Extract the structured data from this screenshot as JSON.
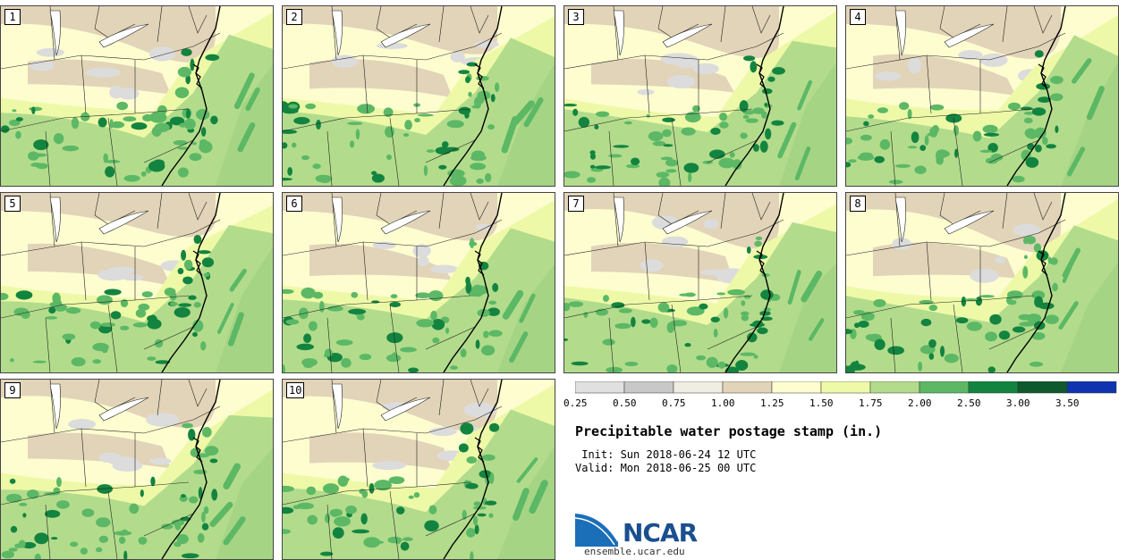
{
  "panels": [
    {
      "label": "1"
    },
    {
      "label": "2"
    },
    {
      "label": "3"
    },
    {
      "label": "4"
    },
    {
      "label": "5"
    },
    {
      "label": "6"
    },
    {
      "label": "7"
    },
    {
      "label": "8"
    },
    {
      "label": "9"
    },
    {
      "label": "10"
    }
  ],
  "legend": {
    "ticks": [
      "0.25",
      "0.50",
      "0.75",
      "1.00",
      "1.25",
      "1.50",
      "1.75",
      "2.00",
      "2.50",
      "3.00",
      "3.50"
    ],
    "colors": [
      "#e0e0e0",
      "#c8c8c8",
      "#f0ede2",
      "#e2d4b8",
      "#fdfdd0",
      "#eef9a8",
      "#b2dc8c",
      "#5cb865",
      "#13843f",
      "#0e5a2c",
      "#1034b0"
    ]
  },
  "title": "Precipitable water postage stamp (in.)",
  "init": " Init: Sun 2018-06-24 12 UTC",
  "valid": "Valid: Mon 2018-06-25 00 UTC",
  "logo": {
    "text": "NCAR",
    "url": "ensemble.ucar.edu",
    "color": "#1a4f8f"
  }
}
